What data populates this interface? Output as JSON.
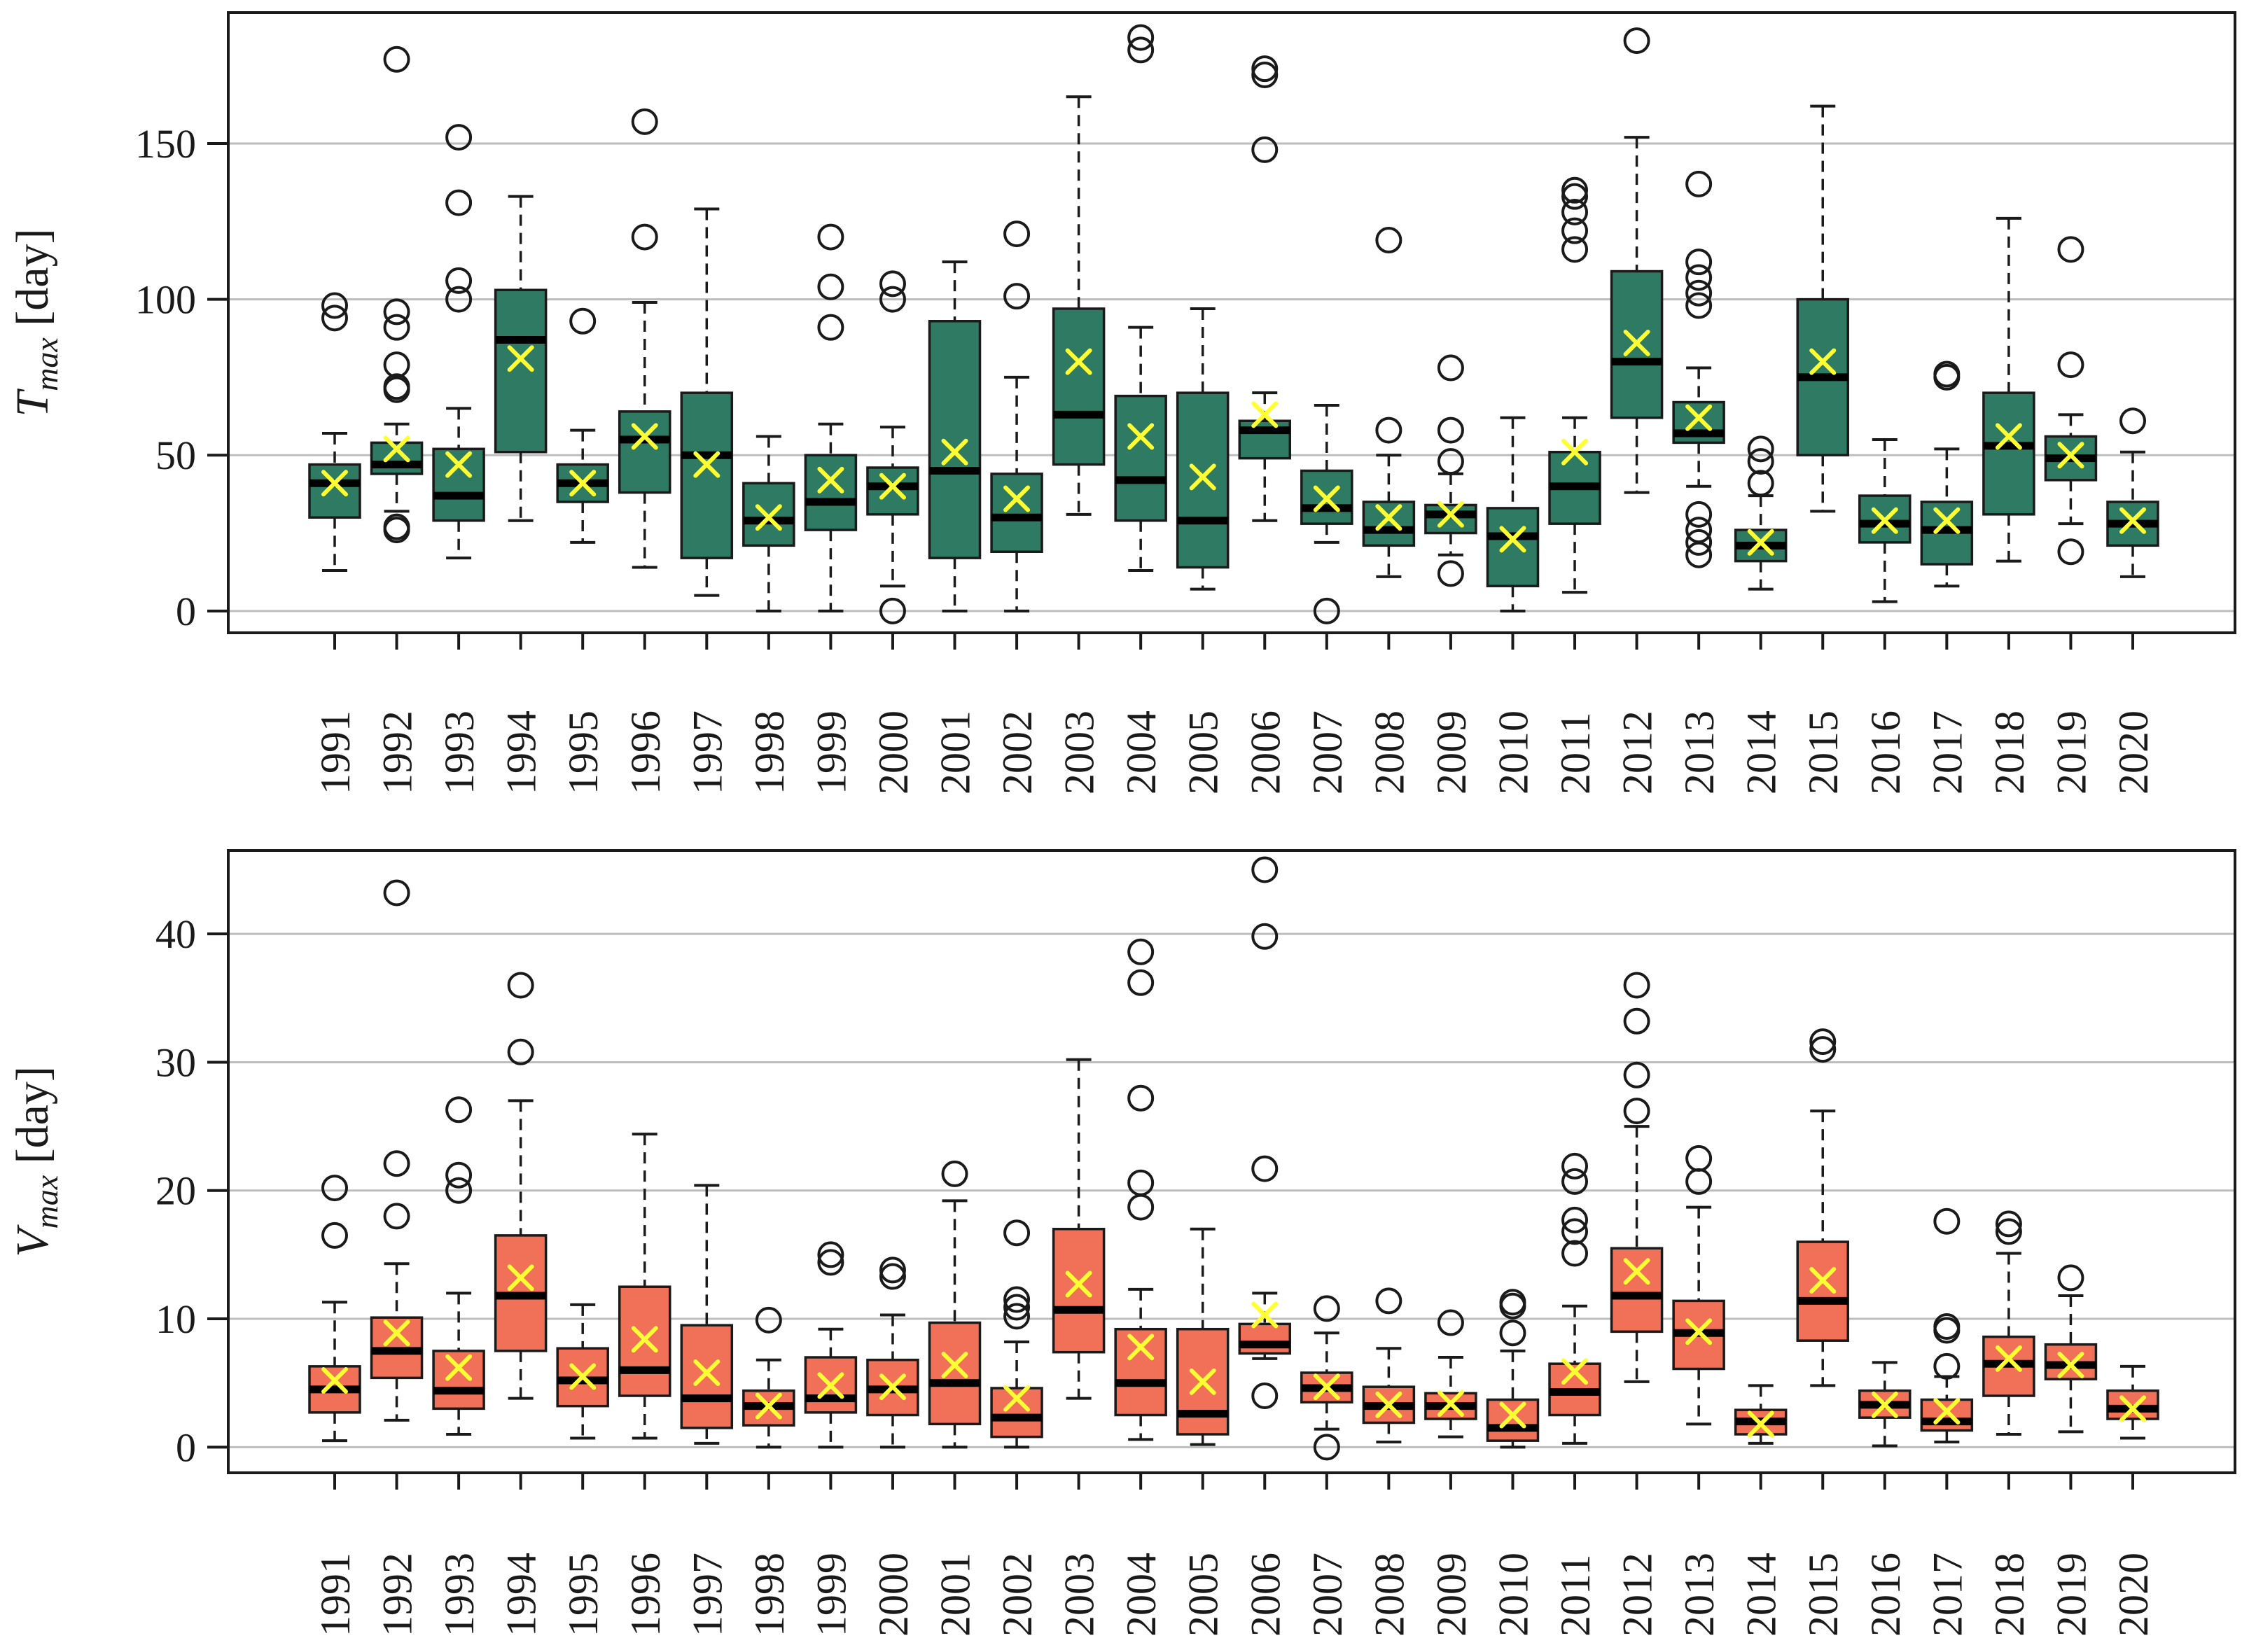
{
  "chart_data": [
    {
      "type": "box",
      "id": "tmax",
      "ylabel": {
        "symbol": "T",
        "sub": "max",
        "unit": " [day]"
      },
      "ylim": [
        -7,
        192
      ],
      "yticks": [
        0,
        50,
        100,
        150
      ],
      "grid": true,
      "box_color": "#2e7a62",
      "mean_color": "#ffff33",
      "categories": [
        "1991",
        "1992",
        "1993",
        "1994",
        "1995",
        "1996",
        "1997",
        "1998",
        "1999",
        "2000",
        "2001",
        "2002",
        "2003",
        "2004",
        "2005",
        "2006",
        "2007",
        "2008",
        "2009",
        "2010",
        "2011",
        "2012",
        "2013",
        "2014",
        "2015",
        "2016",
        "2017",
        "2018",
        "2019",
        "2020"
      ],
      "boxes": [
        {
          "wl": 13,
          "q1": 30,
          "med": 41,
          "q3": 47,
          "wh": 57,
          "mean": 41,
          "out": [
            94,
            98
          ]
        },
        {
          "wl": 32,
          "q1": 44,
          "med": 47,
          "q3": 54,
          "wh": 60,
          "mean": 52,
          "out": [
            26,
            27,
            71,
            72,
            79,
            91,
            96,
            177
          ]
        },
        {
          "wl": 17,
          "q1": 29,
          "med": 37,
          "q3": 52,
          "wh": 65,
          "mean": 47,
          "out": [
            100,
            106,
            131,
            152
          ]
        },
        {
          "wl": 29,
          "q1": 51,
          "med": 87,
          "q3": 103,
          "wh": 133,
          "mean": 81,
          "out": []
        },
        {
          "wl": 22,
          "q1": 35,
          "med": 41,
          "q3": 47,
          "wh": 58,
          "mean": 41,
          "out": [
            93
          ]
        },
        {
          "wl": 14,
          "q1": 38,
          "med": 55,
          "q3": 64,
          "wh": 99,
          "mean": 56,
          "out": [
            120,
            157
          ]
        },
        {
          "wl": 5,
          "q1": 17,
          "med": 50,
          "q3": 70,
          "wh": 129,
          "mean": 47,
          "out": []
        },
        {
          "wl": 0,
          "q1": 21,
          "med": 29,
          "q3": 41,
          "wh": 56,
          "mean": 30,
          "out": []
        },
        {
          "wl": 0,
          "q1": 26,
          "med": 35,
          "q3": 50,
          "wh": 60,
          "mean": 42,
          "out": [
            91,
            104,
            120
          ]
        },
        {
          "wl": 8,
          "q1": 31,
          "med": 40,
          "q3": 46,
          "wh": 59,
          "mean": 40,
          "out": [
            0,
            100,
            105
          ]
        },
        {
          "wl": 0,
          "q1": 17,
          "med": 45,
          "q3": 93,
          "wh": 112,
          "mean": 51,
          "out": []
        },
        {
          "wl": 0,
          "q1": 19,
          "med": 30,
          "q3": 44,
          "wh": 75,
          "mean": 36,
          "out": [
            101,
            121
          ]
        },
        {
          "wl": 31,
          "q1": 47,
          "med": 63,
          "q3": 97,
          "wh": 165,
          "mean": 80,
          "out": []
        },
        {
          "wl": 13,
          "q1": 29,
          "med": 42,
          "q3": 69,
          "wh": 91,
          "mean": 56,
          "out": [
            180,
            184
          ]
        },
        {
          "wl": 7,
          "q1": 14,
          "med": 29,
          "q3": 70,
          "wh": 97,
          "mean": 43,
          "out": []
        },
        {
          "wl": 29,
          "q1": 49,
          "med": 58,
          "q3": 61,
          "wh": 70,
          "mean": 63,
          "out": [
            148,
            172,
            174
          ]
        },
        {
          "wl": 22,
          "q1": 28,
          "med": 33,
          "q3": 45,
          "wh": 66,
          "mean": 36,
          "out": [
            0
          ]
        },
        {
          "wl": 11,
          "q1": 21,
          "med": 26,
          "q3": 35,
          "wh": 50,
          "mean": 30,
          "out": [
            58,
            119
          ]
        },
        {
          "wl": 18,
          "q1": 25,
          "med": 31,
          "q3": 34,
          "wh": 44,
          "mean": 31,
          "out": [
            12,
            48,
            58,
            78
          ]
        },
        {
          "wl": 0,
          "q1": 8,
          "med": 24,
          "q3": 33,
          "wh": 62,
          "mean": 23,
          "out": []
        },
        {
          "wl": 6,
          "q1": 28,
          "med": 40,
          "q3": 51,
          "wh": 62,
          "mean": 51,
          "out": [
            116,
            122,
            128,
            133,
            135
          ]
        },
        {
          "wl": 38,
          "q1": 62,
          "med": 80,
          "q3": 109,
          "wh": 152,
          "mean": 86,
          "out": [
            183
          ]
        },
        {
          "wl": 40,
          "q1": 54,
          "med": 57,
          "q3": 67,
          "wh": 78,
          "mean": 62,
          "out": [
            18,
            22,
            26,
            31,
            98,
            102,
            107,
            112,
            137
          ]
        },
        {
          "wl": 7,
          "q1": 16,
          "med": 21,
          "q3": 26,
          "wh": 37,
          "mean": 22,
          "out": [
            41,
            48,
            52
          ]
        },
        {
          "wl": 32,
          "q1": 50,
          "med": 75,
          "q3": 100,
          "wh": 162,
          "mean": 80,
          "out": []
        },
        {
          "wl": 3,
          "q1": 22,
          "med": 28,
          "q3": 37,
          "wh": 55,
          "mean": 29,
          "out": []
        },
        {
          "wl": 8,
          "q1": 15,
          "med": 26,
          "q3": 35,
          "wh": 52,
          "mean": 29,
          "out": [
            75,
            76
          ]
        },
        {
          "wl": 16,
          "q1": 31,
          "med": 53,
          "q3": 70,
          "wh": 126,
          "mean": 56,
          "out": []
        },
        {
          "wl": 28,
          "q1": 42,
          "med": 49,
          "q3": 56,
          "wh": 63,
          "mean": 50,
          "out": [
            19,
            79,
            116
          ]
        },
        {
          "wl": 11,
          "q1": 21,
          "med": 28,
          "q3": 35,
          "wh": 51,
          "mean": 29,
          "out": [
            61
          ]
        }
      ]
    },
    {
      "type": "box",
      "id": "vmax",
      "ylabel": {
        "symbol": "V",
        "sub": "max",
        "unit": " [day]"
      },
      "ylim": [
        -2,
        46.5
      ],
      "yticks": [
        0,
        10,
        20,
        30,
        40
      ],
      "grid": true,
      "box_color": "#f07058",
      "mean_color": "#ffff33",
      "categories": [
        "1991",
        "1992",
        "1993",
        "1994",
        "1995",
        "1996",
        "1997",
        "1998",
        "1999",
        "2000",
        "2001",
        "2002",
        "2003",
        "2004",
        "2005",
        "2006",
        "2007",
        "2008",
        "2009",
        "2010",
        "2011",
        "2012",
        "2013",
        "2014",
        "2015",
        "2016",
        "2017",
        "2018",
        "2019",
        "2020"
      ],
      "boxes": [
        {
          "wl": 0.5,
          "q1": 2.7,
          "med": 4.5,
          "q3": 6.3,
          "wh": 11.3,
          "mean": 5.2,
          "out": [
            16.5,
            20.2
          ]
        },
        {
          "wl": 2.1,
          "q1": 5.4,
          "med": 7.5,
          "q3": 10.1,
          "wh": 14.3,
          "mean": 8.9,
          "out": [
            18.0,
            22.1,
            43.2
          ]
        },
        {
          "wl": 1.0,
          "q1": 3.0,
          "med": 4.4,
          "q3": 7.5,
          "wh": 12.0,
          "mean": 6.2,
          "out": [
            20.0,
            21.2,
            26.3
          ]
        },
        {
          "wl": 3.8,
          "q1": 7.5,
          "med": 11.8,
          "q3": 16.5,
          "wh": 27.0,
          "mean": 13.2,
          "out": [
            30.8,
            36.0
          ]
        },
        {
          "wl": 0.7,
          "q1": 3.2,
          "med": 5.2,
          "q3": 7.7,
          "wh": 11.1,
          "mean": 5.5,
          "out": []
        },
        {
          "wl": 0.7,
          "q1": 4.0,
          "med": 6.0,
          "q3": 12.5,
          "wh": 24.4,
          "mean": 8.4,
          "out": []
        },
        {
          "wl": 0.3,
          "q1": 1.5,
          "med": 3.8,
          "q3": 9.5,
          "wh": 20.4,
          "mean": 5.8,
          "out": []
        },
        {
          "wl": 0.0,
          "q1": 1.7,
          "med": 3.2,
          "q3": 4.4,
          "wh": 6.8,
          "mean": 3.2,
          "out": [
            9.9
          ]
        },
        {
          "wl": 0.0,
          "q1": 2.7,
          "med": 3.8,
          "q3": 7.0,
          "wh": 9.2,
          "mean": 4.8,
          "out": [
            14.4,
            15.0
          ]
        },
        {
          "wl": 0.0,
          "q1": 2.5,
          "med": 4.5,
          "q3": 6.8,
          "wh": 10.3,
          "mean": 4.7,
          "out": [
            13.3,
            13.8
          ]
        },
        {
          "wl": 0.0,
          "q1": 1.8,
          "med": 5.0,
          "q3": 9.7,
          "wh": 19.2,
          "mean": 6.4,
          "out": [
            21.3
          ]
        },
        {
          "wl": 0.0,
          "q1": 0.8,
          "med": 2.3,
          "q3": 4.6,
          "wh": 8.2,
          "mean": 3.8,
          "out": [
            10.2,
            10.9,
            11.5,
            16.7
          ]
        },
        {
          "wl": 3.8,
          "q1": 7.4,
          "med": 10.7,
          "q3": 17.0,
          "wh": 30.2,
          "mean": 12.7,
          "out": []
        },
        {
          "wl": 0.6,
          "q1": 2.5,
          "med": 5.0,
          "q3": 9.2,
          "wh": 12.3,
          "mean": 7.8,
          "out": [
            18.7,
            20.6,
            27.2,
            36.2,
            38.6
          ]
        },
        {
          "wl": 0.2,
          "q1": 1.0,
          "med": 2.6,
          "q3": 9.2,
          "wh": 17.0,
          "mean": 5.1,
          "out": []
        },
        {
          "wl": 6.9,
          "q1": 7.3,
          "med": 8.0,
          "q3": 9.6,
          "wh": 12.0,
          "mean": 10.3,
          "out": [
            4.0,
            21.7,
            39.8,
            45.0
          ]
        },
        {
          "wl": 1.4,
          "q1": 3.5,
          "med": 4.6,
          "q3": 5.8,
          "wh": 8.9,
          "mean": 4.7,
          "out": [
            0.0,
            10.8
          ]
        },
        {
          "wl": 0.4,
          "q1": 1.9,
          "med": 3.2,
          "q3": 4.7,
          "wh": 7.7,
          "mean": 3.3,
          "out": [
            11.4
          ]
        },
        {
          "wl": 0.8,
          "q1": 2.2,
          "med": 3.2,
          "q3": 4.2,
          "wh": 7.0,
          "mean": 3.4,
          "out": [
            9.7
          ]
        },
        {
          "wl": 0.0,
          "q1": 0.5,
          "med": 1.5,
          "q3": 3.7,
          "wh": 7.5,
          "mean": 2.5,
          "out": [
            8.9,
            11.0,
            11.3
          ]
        },
        {
          "wl": 0.3,
          "q1": 2.5,
          "med": 4.3,
          "q3": 6.5,
          "wh": 11.0,
          "mean": 5.9,
          "out": [
            15.1,
            16.8,
            17.7,
            20.7,
            21.9
          ]
        },
        {
          "wl": 5.1,
          "q1": 9.0,
          "med": 11.8,
          "q3": 15.5,
          "wh": 25.0,
          "mean": 13.7,
          "out": [
            26.2,
            29.0,
            33.2,
            36.0
          ]
        },
        {
          "wl": 1.8,
          "q1": 6.1,
          "med": 8.9,
          "q3": 11.4,
          "wh": 18.7,
          "mean": 9.0,
          "out": [
            20.7,
            22.5
          ]
        },
        {
          "wl": 0.3,
          "q1": 1.0,
          "med": 2.0,
          "q3": 2.9,
          "wh": 4.8,
          "mean": 1.8,
          "out": []
        },
        {
          "wl": 4.8,
          "q1": 8.3,
          "med": 11.4,
          "q3": 16.0,
          "wh": 26.2,
          "mean": 13.0,
          "out": [
            31.0,
            31.6
          ]
        },
        {
          "wl": 0.1,
          "q1": 2.3,
          "med": 3.3,
          "q3": 4.4,
          "wh": 6.6,
          "mean": 3.3,
          "out": []
        },
        {
          "wl": 0.4,
          "q1": 1.3,
          "med": 2.0,
          "q3": 3.7,
          "wh": 5.5,
          "mean": 2.8,
          "out": [
            6.3,
            9.1,
            9.4,
            17.6
          ]
        },
        {
          "wl": 1.0,
          "q1": 4.0,
          "med": 6.5,
          "q3": 8.6,
          "wh": 15.1,
          "mean": 6.9,
          "out": [
            16.8,
            17.4
          ]
        },
        {
          "wl": 1.2,
          "q1": 5.3,
          "med": 6.4,
          "q3": 8.0,
          "wh": 11.8,
          "mean": 6.4,
          "out": [
            13.2
          ]
        },
        {
          "wl": 0.7,
          "q1": 2.2,
          "med": 3.0,
          "q3": 4.4,
          "wh": 6.3,
          "mean": 3.0,
          "out": []
        }
      ]
    }
  ]
}
